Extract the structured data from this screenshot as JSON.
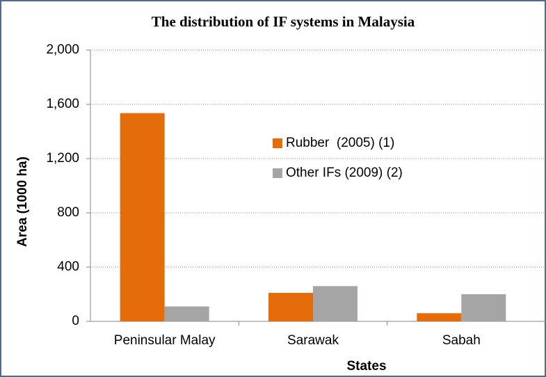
{
  "chart_data": {
    "type": "bar",
    "title": "The distribution of IF systems in Malaysia",
    "xlabel": "States",
    "ylabel": "Area (1000 ha)",
    "categories": [
      "Peninsular Malay",
      "Sarawak",
      "Sabah"
    ],
    "series": [
      {
        "name": "Rubber  (2005) (1)",
        "color": "#e46c0a",
        "values": [
          1535,
          210,
          60
        ]
      },
      {
        "name": "Other IFs (2009) (2)",
        "color": "#a5a5a5",
        "values": [
          110,
          260,
          200
        ]
      }
    ],
    "ylim": [
      0,
      2000
    ],
    "yticks": [
      0,
      400,
      800,
      {
        "value": 1200,
        "label": "1,200"
      },
      {
        "value": 1600,
        "label": "1,600"
      },
      {
        "value": 2000,
        "label": "2,000"
      }
    ],
    "grid": true,
    "legend": "center"
  }
}
